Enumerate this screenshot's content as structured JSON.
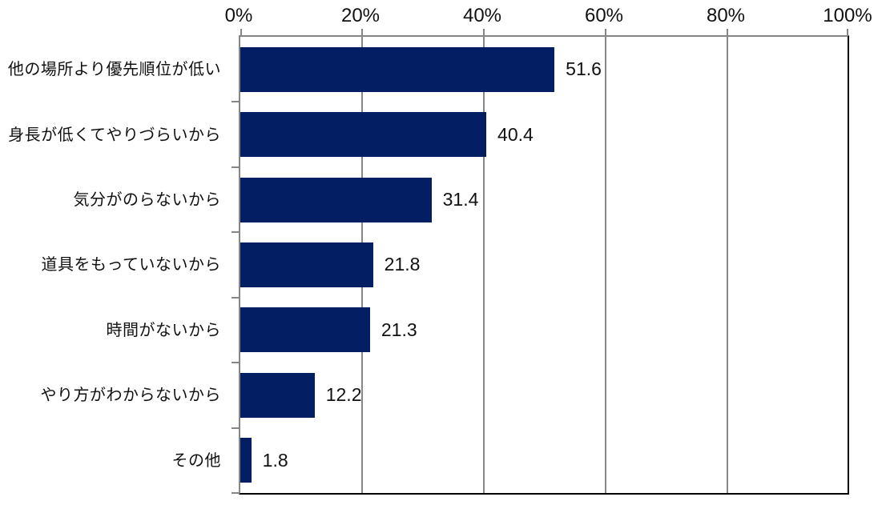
{
  "chart_data": {
    "type": "bar",
    "orientation": "horizontal",
    "title": "",
    "xlabel": "",
    "ylabel": "",
    "categories": [
      "他の場所より優先順位が低い",
      "身長が低くてやりづらいから",
      "気分がのらないから",
      "道具をもっていないから",
      "時間がないから",
      "やり方がわからないから",
      "その他"
    ],
    "values": [
      51.6,
      40.4,
      31.4,
      21.8,
      21.3,
      12.2,
      1.8
    ],
    "value_labels": [
      "51.6",
      "40.4",
      "31.4",
      "21.8",
      "21.3",
      "12.2",
      "1.8"
    ],
    "xlim": [
      0,
      100
    ],
    "x_ticks": [
      "0%",
      "20%",
      "40%",
      "60%",
      "80%",
      "100%"
    ],
    "x_tick_values": [
      0,
      20,
      40,
      60,
      80,
      100
    ],
    "grid": true,
    "legend": "none",
    "colors": {
      "bar": "#041E64",
      "gridline": "#868686",
      "axis_dark": "#000000",
      "text": "#111111",
      "background": "#FFFFFF"
    }
  }
}
